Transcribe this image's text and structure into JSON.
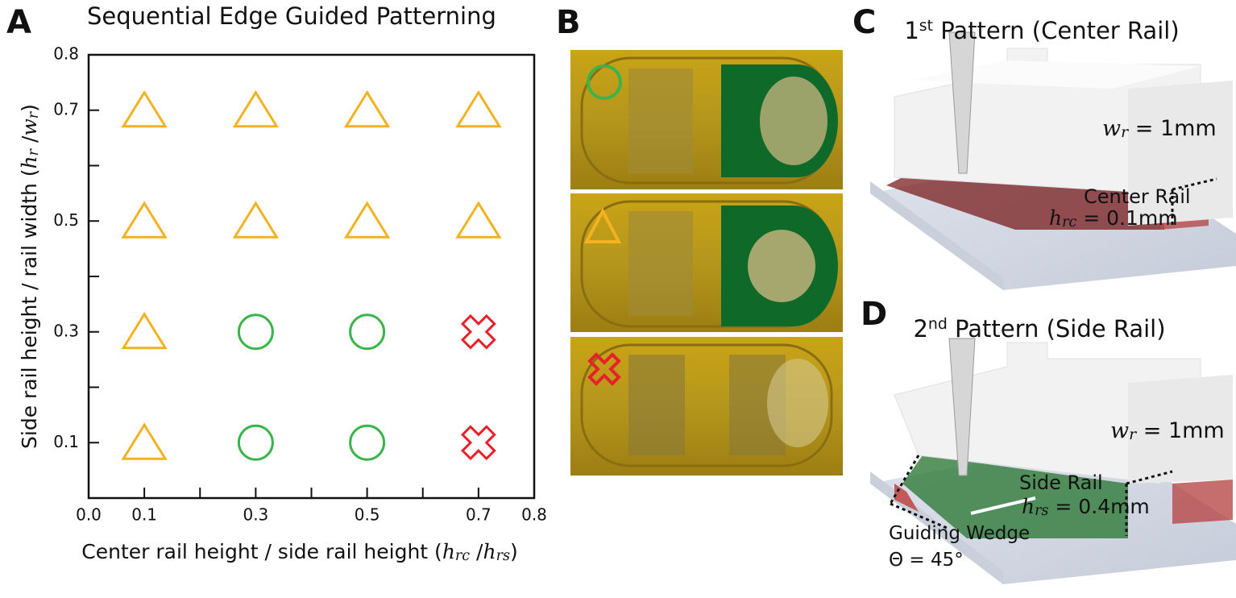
{
  "panel_labels": [
    "A",
    "B",
    "C",
    "D"
  ],
  "chart_data": {
    "type": "scatter",
    "title": "Sequential Edge Guided Patterning",
    "x_label": {
      "parts": [
        {
          "text": "Center rail height / side rail height ("
        },
        {
          "text": "h",
          "style": "italic"
        },
        {
          "text": "rc",
          "style": "sub"
        },
        {
          "text": " /"
        },
        {
          "text": "h",
          "style": "italic"
        },
        {
          "text": "rs",
          "style": "sub"
        },
        {
          "text": ")"
        }
      ]
    },
    "y_label": {
      "parts": [
        {
          "text": "Side rail height / rail width ("
        },
        {
          "text": "h",
          "style": "italic"
        },
        {
          "text": "r",
          "style": "sub"
        },
        {
          "text": " /"
        },
        {
          "text": "w",
          "style": "italic"
        },
        {
          "text": "r",
          "style": "sub"
        },
        {
          "text": ")"
        }
      ]
    },
    "xlim": [
      0,
      0.8
    ],
    "ylim": [
      0,
      0.8
    ],
    "xticks": [
      {
        "value": 0,
        "label": "0.0"
      },
      0.1,
      0.3,
      0.5,
      0.7,
      0.8
    ],
    "xminor": [
      0.2,
      0.4,
      0.6
    ],
    "yticks": [
      0.1,
      0.3,
      0.5,
      0.7,
      0.8
    ],
    "yminor": [
      0.2,
      0.4,
      0.6
    ],
    "series": [
      {
        "marker": "triangle",
        "color": "#f4b120",
        "x": [
          0.1,
          0.3,
          0.5,
          0.7,
          0.1,
          0.3,
          0.5,
          0.7,
          0.1,
          0.1
        ],
        "y": [
          0.7,
          0.7,
          0.7,
          0.7,
          0.5,
          0.5,
          0.5,
          0.5,
          0.3,
          0.1
        ]
      },
      {
        "marker": "circle",
        "color": "#3bb44b",
        "x": [
          0.3,
          0.5,
          0.3,
          0.5
        ],
        "y": [
          0.3,
          0.3,
          0.1,
          0.1
        ]
      },
      {
        "marker": "cross",
        "color": "#e8202a",
        "x": [
          0.7,
          0.7
        ],
        "y": [
          0.3,
          0.1
        ]
      }
    ]
  },
  "panel_c": {
    "title": {
      "parts": [
        {
          "text": "1"
        },
        {
          "text": "st",
          "style": "sup"
        },
        {
          "text": " Pattern (Center Rail)"
        }
      ]
    },
    "labels": [
      {
        "parts": [
          {
            "text": "w",
            "style": "italic"
          },
          {
            "text": "r",
            "style": "sub"
          },
          {
            "text": " = 1mm"
          }
        ]
      },
      {
        "parts": [
          {
            "text": "Center Rail"
          }
        ]
      },
      {
        "parts": [
          {
            "text": "h",
            "style": "italic"
          },
          {
            "text": "rc",
            "style": "sub"
          },
          {
            "text": " = 0.1mm"
          }
        ]
      }
    ]
  },
  "panel_d": {
    "title": {
      "parts": [
        {
          "text": "2"
        },
        {
          "text": "nd",
          "style": "sup"
        },
        {
          "text": " Pattern (Side Rail)"
        }
      ]
    },
    "labels": [
      {
        "parts": [
          {
            "text": "w",
            "style": "italic"
          },
          {
            "text": "r",
            "style": "sub"
          },
          {
            "text": " = 1mm"
          }
        ]
      },
      {
        "parts": [
          {
            "text": "Side Rail"
          }
        ]
      },
      {
        "parts": [
          {
            "text": "h",
            "style": "italic"
          },
          {
            "text": "rs",
            "style": "sub"
          },
          {
            "text": " = 0.4mm"
          }
        ]
      },
      {
        "parts": [
          {
            "text": "Guiding Wedge"
          }
        ]
      },
      {
        "parts": [
          {
            "text": "Θ = 45°"
          }
        ]
      }
    ]
  }
}
